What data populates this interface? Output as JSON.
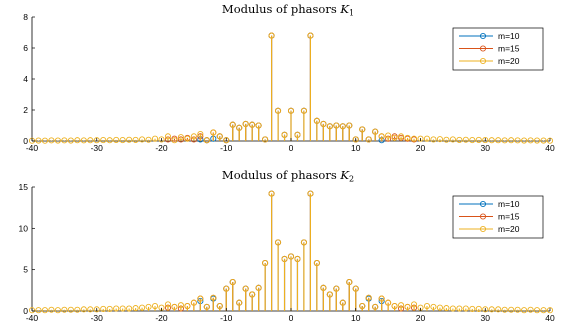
{
  "chart_data": [
    {
      "type": "stem",
      "title": "Modulus of phasors ",
      "title_symbol": "K",
      "title_subscript": "1",
      "xlim": [
        -40,
        40
      ],
      "ylim": [
        0,
        8
      ],
      "xticks": [
        -40,
        -30,
        -20,
        -10,
        0,
        10,
        20,
        30,
        40
      ],
      "yticks": [
        0,
        2,
        4,
        6,
        8
      ],
      "legend": "top-right",
      "grid": false,
      "series": [
        {
          "name": "m=10",
          "color": "#0072BD",
          "x": [
            -14,
            -13,
            -12,
            -11,
            -10,
            -9,
            -8,
            -7,
            -6,
            -5,
            -4,
            -3,
            -2,
            -1,
            0,
            1,
            2,
            3,
            4,
            5,
            6,
            7,
            8,
            9,
            10,
            11,
            12,
            13,
            14
          ],
          "values": [
            0.1,
            0.05,
            0.15,
            0.3,
            0.05,
            1.05,
            0.85,
            1.1,
            1.05,
            1.0,
            0.1,
            6.8,
            1.95,
            0.4,
            1.95,
            0.4,
            1.95,
            6.8,
            1.3,
            1.1,
            0.95,
            1.0,
            0.95,
            1.0,
            0.1,
            0.75,
            0.1,
            0.6,
            0.05
          ]
        },
        {
          "name": "m=15",
          "color": "#D95319",
          "x": [
            -19,
            -18,
            -17,
            -16,
            -15,
            -14,
            -13,
            -12,
            -11,
            -10,
            -9,
            -8,
            -7,
            -6,
            -5,
            -4,
            -3,
            -2,
            -1,
            0,
            1,
            2,
            3,
            4,
            5,
            6,
            7,
            8,
            9,
            10,
            11,
            12,
            13,
            14,
            15,
            16,
            17,
            18,
            19
          ],
          "values": [
            0.1,
            0.15,
            0.1,
            0.2,
            0.1,
            0.3,
            0.05,
            0.55,
            0.3,
            0.05,
            1.05,
            0.85,
            1.1,
            1.05,
            1.0,
            0.1,
            6.8,
            1.95,
            0.4,
            1.95,
            0.4,
            1.95,
            6.8,
            1.3,
            1.1,
            0.95,
            1.0,
            0.95,
            1.0,
            0.1,
            0.75,
            0.1,
            0.6,
            0.3,
            0.15,
            0.3,
            0.2,
            0.15,
            0.1
          ]
        },
        {
          "name": "m=20",
          "color": "#EDB120",
          "x": [
            -40,
            -39,
            -38,
            -37,
            -36,
            -35,
            -34,
            -33,
            -32,
            -31,
            -30,
            -29,
            -28,
            -27,
            -26,
            -25,
            -24,
            -23,
            -22,
            -21,
            -20,
            -19,
            -18,
            -17,
            -16,
            -15,
            -14,
            -13,
            -12,
            -11,
            -10,
            -9,
            -8,
            -7,
            -6,
            -5,
            -4,
            -3,
            -2,
            -1,
            0,
            1,
            2,
            3,
            4,
            5,
            6,
            7,
            8,
            9,
            10,
            11,
            12,
            13,
            14,
            15,
            16,
            17,
            18,
            19,
            20,
            21,
            22,
            23,
            24,
            25,
            26,
            27,
            28,
            29,
            30,
            31,
            32,
            33,
            34,
            35,
            36,
            37,
            38,
            39,
            40
          ],
          "values": [
            0.02,
            0.03,
            0.02,
            0.04,
            0.03,
            0.04,
            0.03,
            0.05,
            0.04,
            0.05,
            0.05,
            0.06,
            0.05,
            0.07,
            0.06,
            0.08,
            0.07,
            0.1,
            0.08,
            0.15,
            0.1,
            0.3,
            0.05,
            0.25,
            0.15,
            0.3,
            0.45,
            0.05,
            0.55,
            0.3,
            0.05,
            1.05,
            0.85,
            1.1,
            1.05,
            1.0,
            0.1,
            6.8,
            1.95,
            0.4,
            1.95,
            0.4,
            1.95,
            6.8,
            1.3,
            1.1,
            0.95,
            1.0,
            0.95,
            1.0,
            0.1,
            0.75,
            0.1,
            0.6,
            0.3,
            0.35,
            0.2,
            0.3,
            0.2,
            0.15,
            0.15,
            0.15,
            0.1,
            0.12,
            0.08,
            0.1,
            0.07,
            0.08,
            0.06,
            0.07,
            0.06,
            0.05,
            0.05,
            0.04,
            0.05,
            0.04,
            0.03,
            0.04,
            0.03,
            0.03,
            0.02
          ]
        }
      ]
    },
    {
      "type": "stem",
      "title": "Modulus of phasors ",
      "title_symbol": "K",
      "title_subscript": "2",
      "xlim": [
        -40,
        40
      ],
      "ylim": [
        0,
        15
      ],
      "xticks": [
        -40,
        -30,
        -20,
        -10,
        0,
        10,
        20,
        30,
        40
      ],
      "yticks": [
        0,
        5,
        10,
        15
      ],
      "legend": "top-right",
      "grid": false,
      "series": [
        {
          "name": "m=10",
          "color": "#0072BD",
          "x": [
            -14,
            -13,
            -12,
            -11,
            -10,
            -9,
            -8,
            -7,
            -6,
            -5,
            -4,
            -3,
            -2,
            -1,
            0,
            1,
            2,
            3,
            4,
            5,
            6,
            7,
            8,
            9,
            10,
            11,
            12,
            13,
            14
          ],
          "values": [
            1.2,
            0.5,
            1.5,
            0.6,
            2.7,
            3.5,
            1.0,
            2.7,
            2.0,
            2.8,
            5.8,
            14.2,
            8.3,
            6.3,
            6.6,
            6.3,
            8.3,
            14.2,
            5.8,
            2.8,
            2.0,
            2.7,
            1.0,
            3.5,
            2.7,
            0.6,
            1.5,
            0.5,
            1.2
          ]
        },
        {
          "name": "m=15",
          "color": "#D95319",
          "x": [
            -19,
            -18,
            -17,
            -16,
            -15,
            -14,
            -13,
            -12,
            -11,
            -10,
            -9,
            -8,
            -7,
            -6,
            -5,
            -4,
            -3,
            -2,
            -1,
            0,
            1,
            2,
            3,
            4,
            5,
            6,
            7,
            8,
            9,
            10,
            11,
            12,
            13,
            14,
            15,
            16,
            17,
            18,
            19
          ],
          "values": [
            0.4,
            0.5,
            0.3,
            0.6,
            1.0,
            1.5,
            0.5,
            1.6,
            0.6,
            2.7,
            3.5,
            1.0,
            2.7,
            2.0,
            2.8,
            5.8,
            14.2,
            8.3,
            6.3,
            6.6,
            6.3,
            8.3,
            14.2,
            5.8,
            2.8,
            2.0,
            2.7,
            1.0,
            3.5,
            2.7,
            0.6,
            1.6,
            0.5,
            1.5,
            1.0,
            0.6,
            0.3,
            0.5,
            0.4
          ]
        },
        {
          "name": "m=20",
          "color": "#EDB120",
          "x": [
            -40,
            -39,
            -38,
            -37,
            -36,
            -35,
            -34,
            -33,
            -32,
            -31,
            -30,
            -29,
            -28,
            -27,
            -26,
            -25,
            -24,
            -23,
            -22,
            -21,
            -20,
            -19,
            -18,
            -17,
            -16,
            -15,
            -14,
            -13,
            -12,
            -11,
            -10,
            -9,
            -8,
            -7,
            -6,
            -5,
            -4,
            -3,
            -2,
            -1,
            0,
            1,
            2,
            3,
            4,
            5,
            6,
            7,
            8,
            9,
            10,
            11,
            12,
            13,
            14,
            15,
            16,
            17,
            18,
            19,
            20,
            21,
            22,
            23,
            24,
            25,
            26,
            27,
            28,
            29,
            30,
            31,
            32,
            33,
            34,
            35,
            36,
            37,
            38,
            39,
            40
          ],
          "values": [
            0.1,
            0.1,
            0.1,
            0.15,
            0.1,
            0.15,
            0.15,
            0.15,
            0.2,
            0.2,
            0.2,
            0.25,
            0.25,
            0.3,
            0.3,
            0.3,
            0.35,
            0.4,
            0.5,
            0.6,
            0.4,
            0.8,
            0.5,
            0.7,
            0.6,
            1.0,
            1.5,
            0.5,
            1.6,
            0.6,
            2.7,
            3.5,
            1.0,
            2.7,
            2.0,
            2.8,
            5.8,
            14.2,
            8.3,
            6.3,
            6.6,
            6.3,
            8.3,
            14.2,
            5.8,
            2.8,
            2.0,
            2.7,
            1.0,
            3.5,
            2.7,
            0.6,
            1.6,
            0.5,
            1.5,
            1.0,
            0.6,
            0.7,
            0.5,
            0.8,
            0.4,
            0.6,
            0.5,
            0.4,
            0.35,
            0.3,
            0.3,
            0.3,
            0.25,
            0.25,
            0.2,
            0.2,
            0.2,
            0.15,
            0.15,
            0.15,
            0.1,
            0.15,
            0.1,
            0.1,
            0.1
          ]
        }
      ]
    }
  ]
}
